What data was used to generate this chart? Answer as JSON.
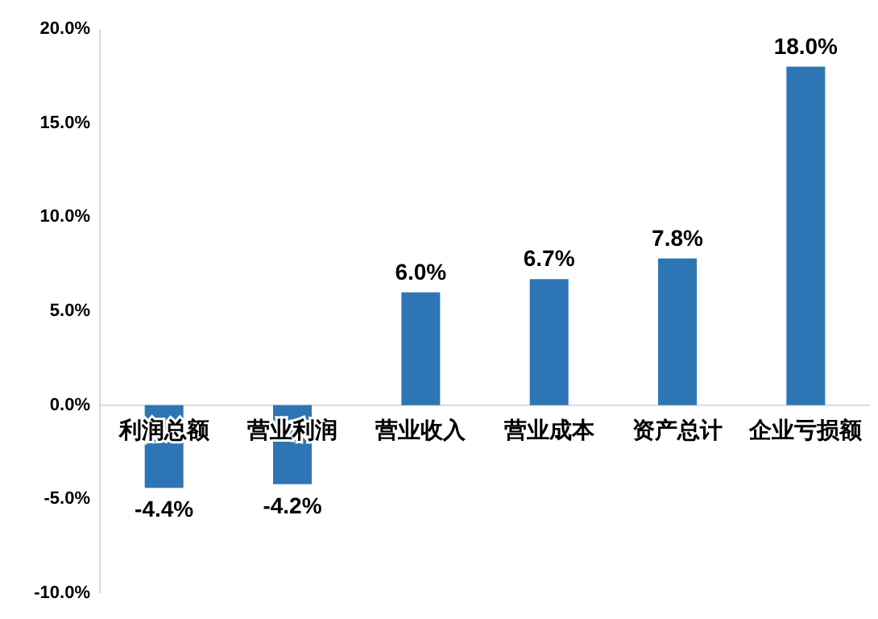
{
  "chart_data": {
    "type": "bar",
    "categories": [
      "利润总额",
      "营业利润",
      "营业收入",
      "营业成本",
      "资产总计",
      "企业亏损额"
    ],
    "values": [
      -4.4,
      -4.2,
      6.0,
      6.7,
      7.8,
      18.0
    ],
    "value_labels": [
      "-4.4%",
      "-4.2%",
      "6.0%",
      "6.7%",
      "7.8%",
      "18.0%"
    ],
    "color": "#2e75b6",
    "ylim": [
      -10,
      20
    ],
    "yticks": [
      {
        "value": -10,
        "label": "-10.0%"
      },
      {
        "value": -5,
        "label": "-5.0%"
      },
      {
        "value": 0,
        "label": "0.0%"
      },
      {
        "value": 5,
        "label": "5.0%"
      },
      {
        "value": 10,
        "label": "10.0%"
      },
      {
        "value": 15,
        "label": "15.0%"
      },
      {
        "value": 20,
        "label": "20.0%"
      }
    ],
    "grid": false
  }
}
